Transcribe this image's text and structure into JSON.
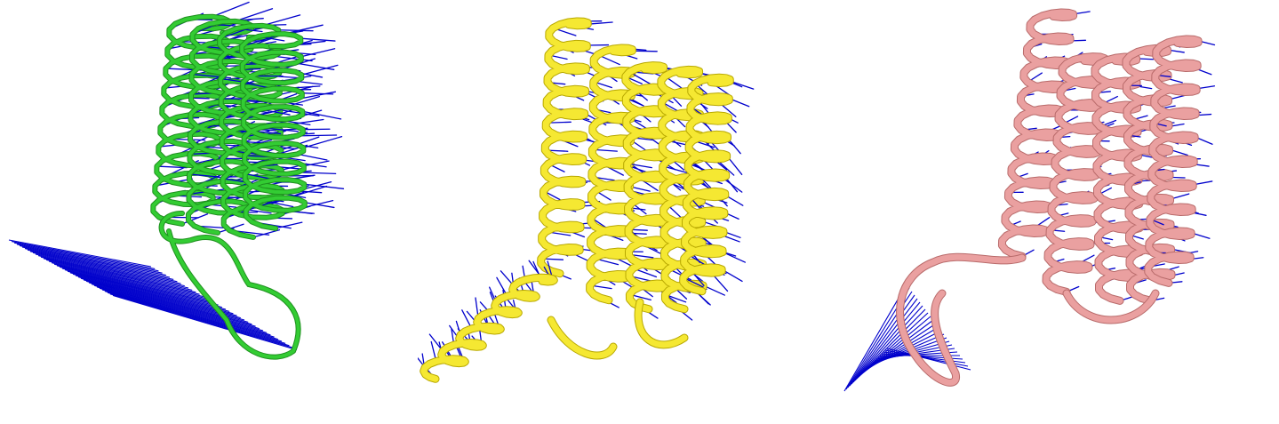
{
  "figure": {
    "panels": [
      {
        "id": "green",
        "backbone_color": "#33cc33",
        "outline_color": "#1e8f1e",
        "vector_color": "#0000cc"
      },
      {
        "id": "yellow",
        "backbone_color": "#f5e832",
        "outline_color": "#b8a800",
        "vector_color": "#0000cc"
      },
      {
        "id": "pink",
        "backbone_color": "#eaa0a0",
        "outline_color": "#b86a6a",
        "vector_color": "#0000cc"
      }
    ]
  }
}
